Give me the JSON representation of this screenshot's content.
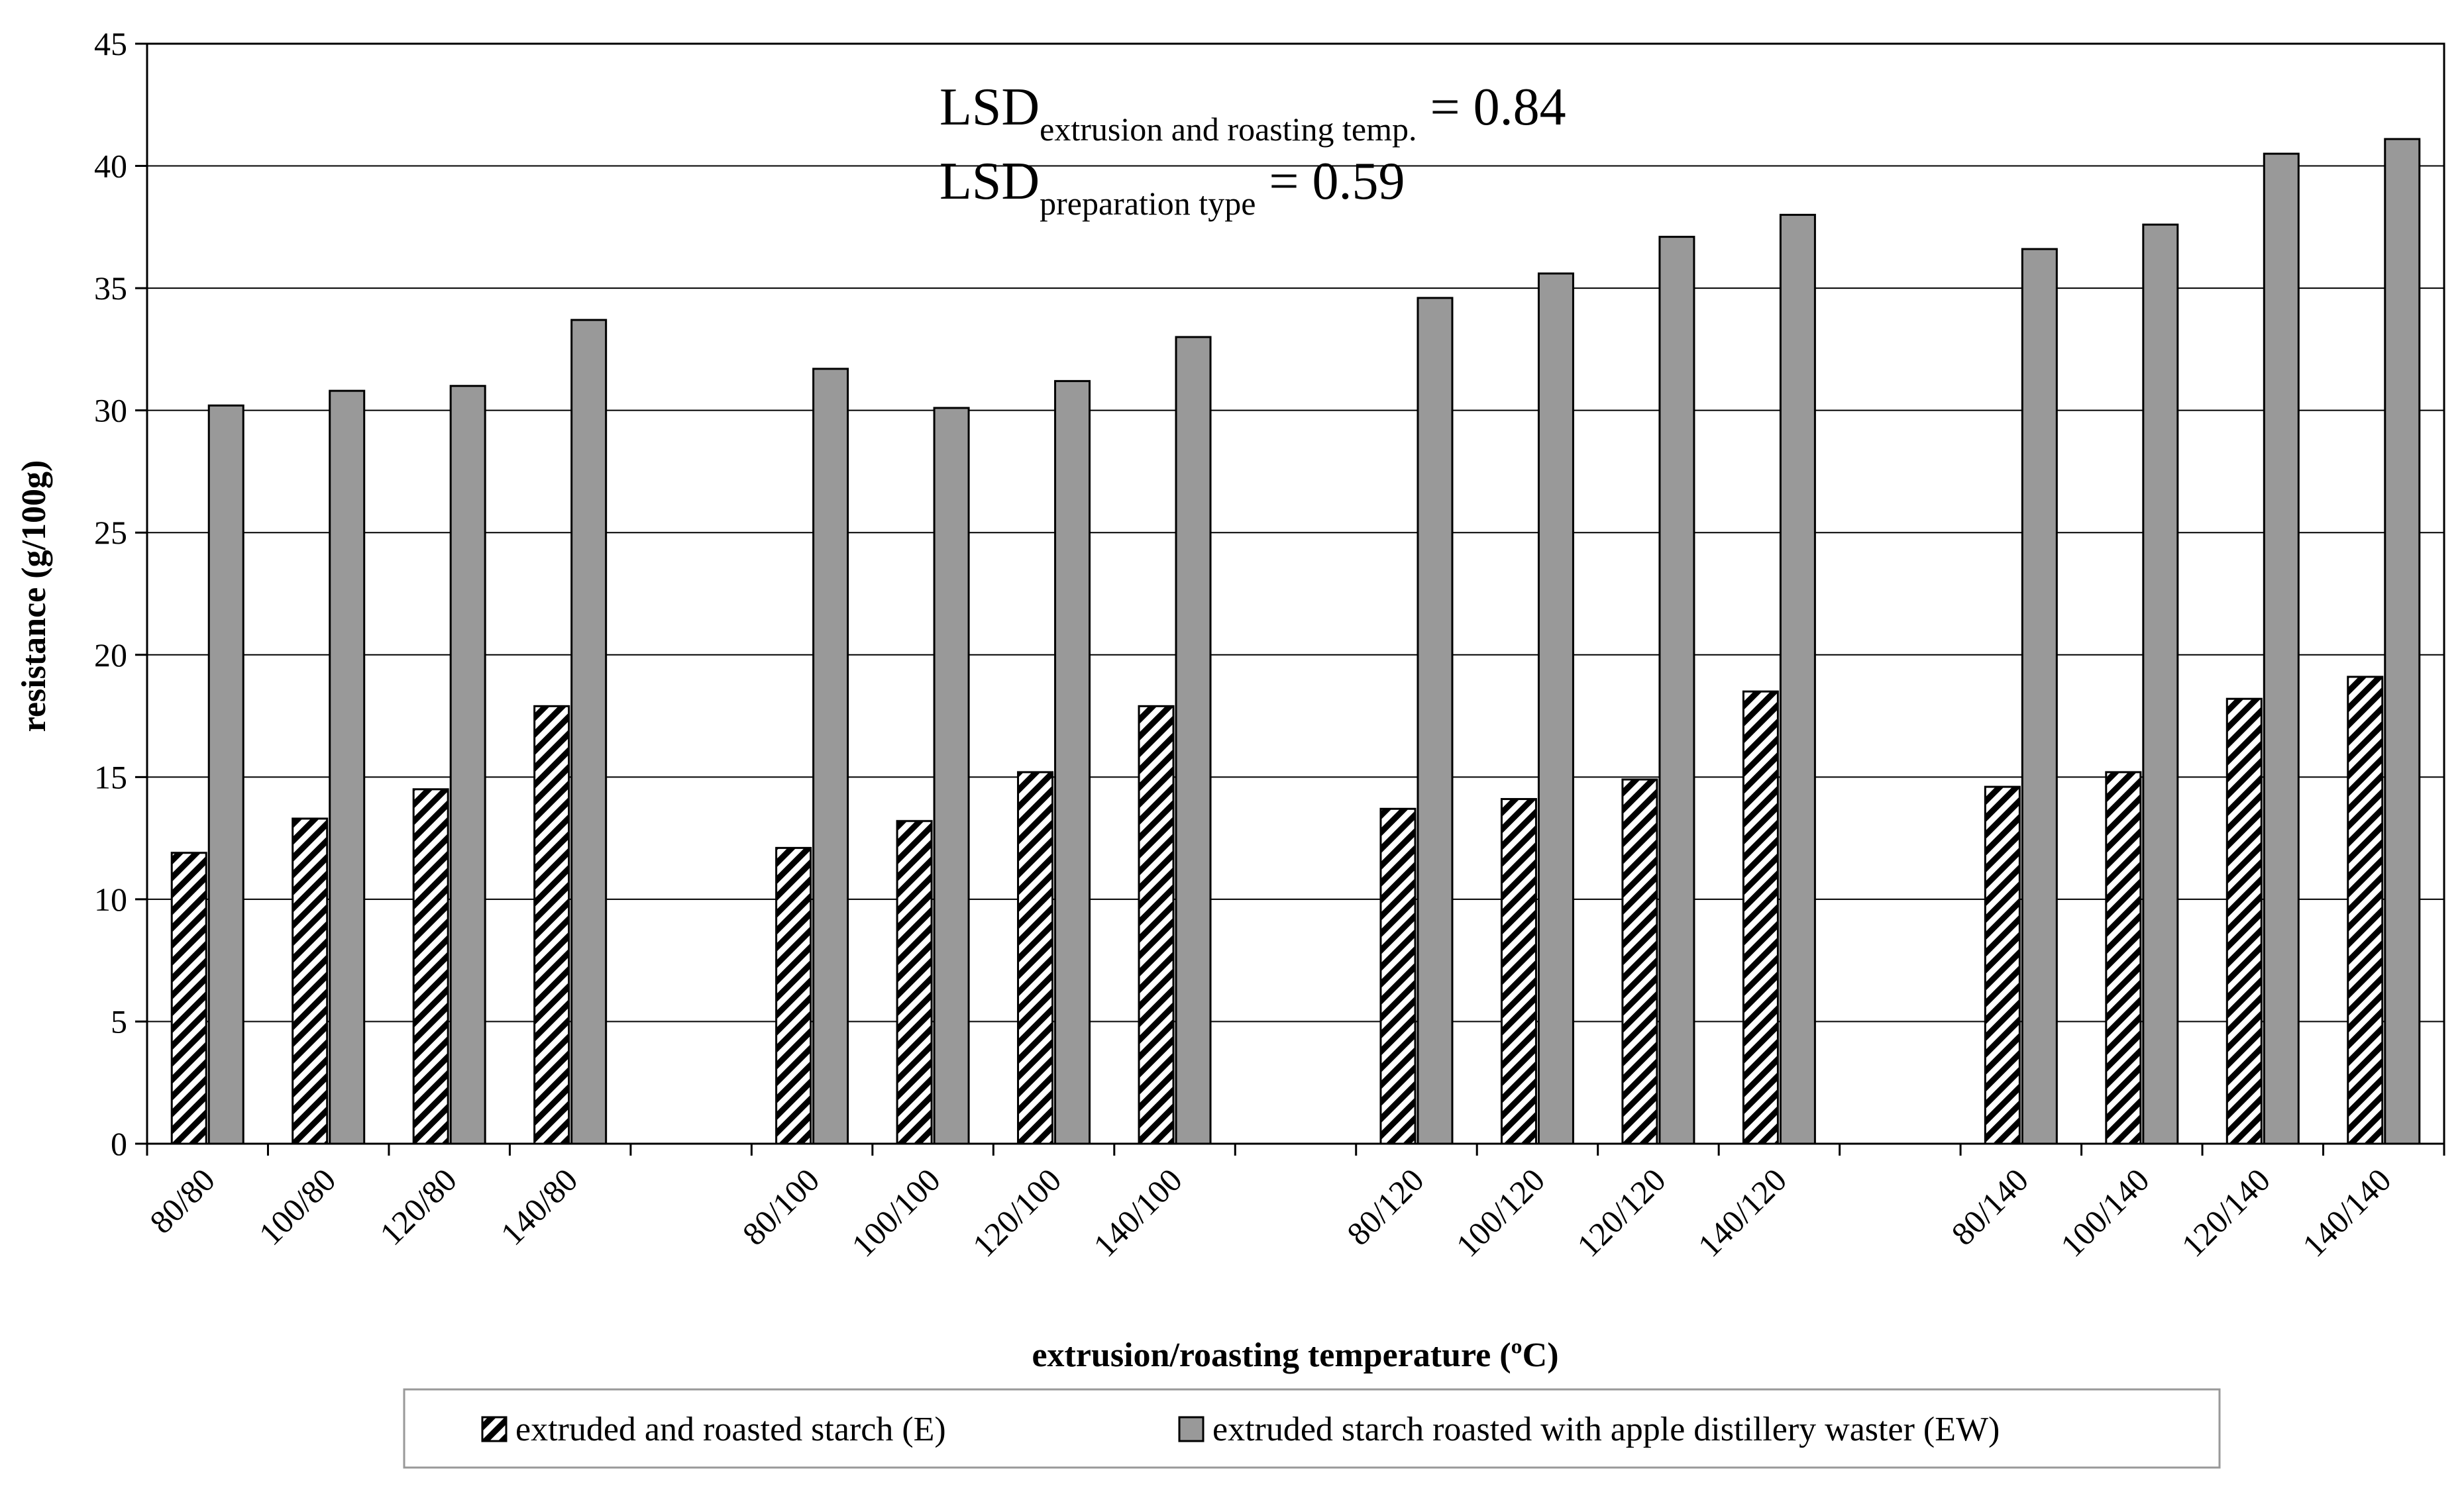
{
  "chart_data": {
    "type": "bar",
    "title": "",
    "xlabel": "extrusion/roasting temperature (ºC)",
    "ylabel": "resistance (g/100g)",
    "ylim": [
      0,
      45
    ],
    "yticks": [
      0,
      5,
      10,
      15,
      20,
      25,
      30,
      35,
      40,
      45
    ],
    "grid": true,
    "legend_position": "bottom",
    "categories": [
      "80/80",
      "100/80",
      "120/80",
      "140/80",
      "",
      "80/100",
      "100/100",
      "120/100",
      "140/100",
      "",
      "80/120",
      "100/120",
      "120/120",
      "140/120",
      "",
      "80/140",
      "100/140",
      "120/140",
      "140/140"
    ],
    "series": [
      {
        "name": "extruded and roasted starch (E)",
        "pattern": "hatch",
        "values": [
          11.9,
          13.3,
          14.5,
          17.9,
          null,
          12.1,
          13.2,
          15.2,
          17.9,
          null,
          13.7,
          14.1,
          14.9,
          18.5,
          null,
          14.6,
          15.2,
          18.2,
          19.1
        ]
      },
      {
        "name": "extruded starch roasted with apple distillery waster (EW)",
        "pattern": "solid",
        "color": "#999999",
        "values": [
          30.2,
          30.8,
          31.0,
          33.7,
          null,
          31.7,
          30.1,
          31.2,
          33.0,
          null,
          34.6,
          35.6,
          37.1,
          38.0,
          null,
          36.6,
          37.6,
          40.5,
          41.1
        ]
      }
    ],
    "annotations": [
      {
        "main": "LSD",
        "sub": "extrusion and roasting temp.",
        "value": " = 0.84"
      },
      {
        "main": "LSD",
        "sub": "preparation type",
        "value": " = 0.59"
      }
    ]
  }
}
